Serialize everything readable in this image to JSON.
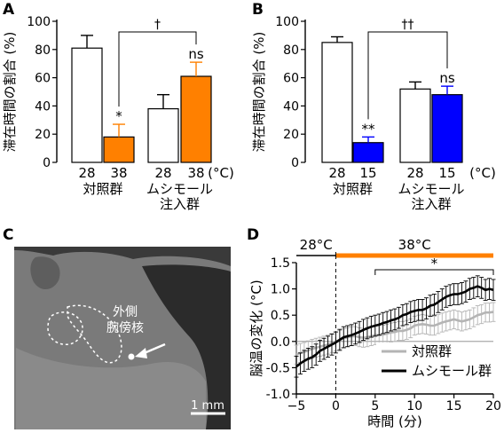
{
  "panels": {
    "A": {
      "label": "A"
    },
    "B": {
      "label": "B"
    },
    "C": {
      "label": "C",
      "region_label_line1": "外側",
      "region_label_line2": "腕傍核",
      "scalebar_label": "1 mm"
    },
    "D": {
      "label": "D"
    }
  },
  "colors": {
    "orange": "#ff8000",
    "blue": "#0000ff",
    "white": "#ffffff",
    "black": "#000000",
    "gray": "#b4b4b4"
  },
  "chart_data": [
    {
      "id": "A",
      "type": "bar",
      "ylabel": "滞在時間の割合 (%)",
      "ylim": [
        0,
        100
      ],
      "yticks": [
        0,
        20,
        40,
        60,
        80,
        100
      ],
      "temp_unit": "(°C)",
      "groups": [
        {
          "name_lines": [
            "対照群"
          ],
          "bars": [
            {
              "category": "28",
              "value": 81,
              "error": 9,
              "color": "white"
            },
            {
              "category": "38",
              "value": 18,
              "error": 9,
              "color": "orange",
              "annotation": "*"
            }
          ]
        },
        {
          "name_lines": [
            "ムシモール",
            "注入群"
          ],
          "bars": [
            {
              "category": "28",
              "value": 38,
              "error": 10,
              "color": "white"
            },
            {
              "category": "38",
              "value": 61,
              "error": 10,
              "color": "orange",
              "annotation": "ns"
            }
          ]
        }
      ],
      "bracket_label": "†"
    },
    {
      "id": "B",
      "type": "bar",
      "ylabel": "滞在時間の割合 (%)",
      "ylim": [
        0,
        100
      ],
      "yticks": [
        0,
        20,
        40,
        60,
        80,
        100
      ],
      "temp_unit": "(°C)",
      "groups": [
        {
          "name_lines": [
            "対照群"
          ],
          "bars": [
            {
              "category": "28",
              "value": 85,
              "error": 4,
              "color": "white"
            },
            {
              "category": "15",
              "value": 14,
              "error": 4,
              "color": "blue",
              "annotation": "**"
            }
          ]
        },
        {
          "name_lines": [
            "ムシモール",
            "注入群"
          ],
          "bars": [
            {
              "category": "28",
              "value": 52,
              "error": 5,
              "color": "white"
            },
            {
              "category": "15",
              "value": 48,
              "error": 6,
              "color": "blue",
              "annotation": "ns"
            }
          ]
        }
      ],
      "bracket_label": "††"
    },
    {
      "id": "D",
      "type": "line",
      "xlabel": "時間 (分)",
      "ylabel": "脳温の変化 (°C)",
      "xlim": [
        -5,
        20
      ],
      "ylim": [
        -1.0,
        1.5
      ],
      "xticks": [
        -5,
        0,
        5,
        10,
        15,
        20
      ],
      "yticks": [
        -1.0,
        -0.5,
        0,
        0.5,
        1.0,
        1.5
      ],
      "temp_bar": [
        {
          "label": "28°C",
          "from": -5,
          "to": 0,
          "color": "black"
        },
        {
          "label": "38°C",
          "from": 0,
          "to": 20,
          "color": "orange"
        }
      ],
      "significance": {
        "label": "*",
        "from": 5,
        "to": 20
      },
      "x": [
        -5,
        -4.5,
        -4,
        -3.5,
        -3,
        -2.5,
        -2,
        -1.5,
        -1,
        -0.5,
        0,
        0.5,
        1,
        1.5,
        2,
        2.5,
        3,
        3.5,
        4,
        4.5,
        5,
        5.5,
        6,
        6.5,
        7,
        7.5,
        8,
        8.5,
        9,
        9.5,
        10,
        10.5,
        11,
        11.5,
        12,
        12.5,
        13,
        13.5,
        14,
        14.5,
        15,
        15.5,
        16,
        16.5,
        17,
        17.5,
        18,
        18.5,
        19,
        19.5,
        20
      ],
      "series": [
        {
          "name": "対照群",
          "color": "gray",
          "values": [
            -0.25,
            -0.22,
            -0.2,
            -0.17,
            -0.14,
            -0.12,
            -0.1,
            -0.08,
            -0.06,
            -0.03,
            0.0,
            0.03,
            0.06,
            0.08,
            0.1,
            0.1,
            0.08,
            0.07,
            0.08,
            0.1,
            0.12,
            0.12,
            0.13,
            0.15,
            0.17,
            0.18,
            0.2,
            0.2,
            0.22,
            0.25,
            0.3,
            0.32,
            0.33,
            0.32,
            0.3,
            0.3,
            0.33,
            0.36,
            0.38,
            0.4,
            0.42,
            0.4,
            0.38,
            0.4,
            0.42,
            0.46,
            0.5,
            0.52,
            0.55,
            0.55,
            0.56
          ],
          "error": 0.18
        },
        {
          "name": "ムシモール群",
          "color": "black",
          "values": [
            -0.48,
            -0.42,
            -0.37,
            -0.33,
            -0.3,
            -0.25,
            -0.18,
            -0.14,
            -0.1,
            -0.06,
            -0.02,
            0.03,
            0.08,
            0.1,
            0.12,
            0.15,
            0.18,
            0.22,
            0.25,
            0.28,
            0.3,
            0.32,
            0.35,
            0.37,
            0.4,
            0.42,
            0.45,
            0.5,
            0.52,
            0.56,
            0.58,
            0.6,
            0.6,
            0.63,
            0.68,
            0.7,
            0.75,
            0.8,
            0.85,
            0.88,
            0.9,
            0.9,
            0.92,
            0.95,
            1.0,
            1.02,
            1.05,
            1.02,
            0.98,
            1.0,
            0.98
          ],
          "error": 0.2
        }
      ]
    }
  ]
}
